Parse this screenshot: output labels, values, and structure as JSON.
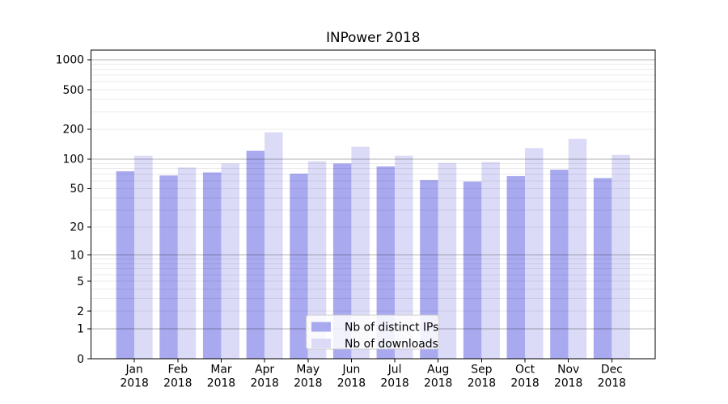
{
  "chart_data": {
    "type": "bar",
    "title": "INPower 2018",
    "categories": [
      "Jan",
      "Feb",
      "Mar",
      "Apr",
      "May",
      "Jun",
      "Jul",
      "Aug",
      "Sep",
      "Oct",
      "Nov",
      "Dec"
    ],
    "year": "2018",
    "series": [
      {
        "name": "Nb of distinct IPs",
        "color": "#a9a9f0",
        "values": [
          75,
          68,
          73,
          121,
          71,
          90,
          84,
          61,
          59,
          67,
          78,
          64
        ]
      },
      {
        "name": "Nb of downloads",
        "color": "#dbdbf8",
        "values": [
          108,
          82,
          90,
          186,
          95,
          133,
          108,
          91,
          93,
          129,
          160,
          110
        ]
      }
    ],
    "xlabel": "",
    "ylabel": "",
    "yscale": "log1p",
    "ylim": [
      0,
      1250
    ],
    "yticks": [
      0,
      1,
      2,
      5,
      10,
      20,
      50,
      100,
      200,
      500,
      1000
    ],
    "major_gridlines": [
      1,
      10,
      100,
      1000
    ],
    "minor_gridlines": [
      2,
      3,
      4,
      5,
      6,
      7,
      8,
      9,
      20,
      30,
      40,
      50,
      60,
      70,
      80,
      90,
      200,
      300,
      400,
      500,
      600,
      700,
      800,
      900
    ],
    "grid": true,
    "legend_position": "lower center",
    "colors": {
      "axis": "#000000",
      "text": "#000000",
      "major_grid": "rgba(0,0,0,0.30)",
      "minor_grid": "rgba(0,0,0,0.08)",
      "legend_background": "rgba(255,255,255,0.85)",
      "legend_border": "#cccccc",
      "background": "#ffffff"
    }
  }
}
